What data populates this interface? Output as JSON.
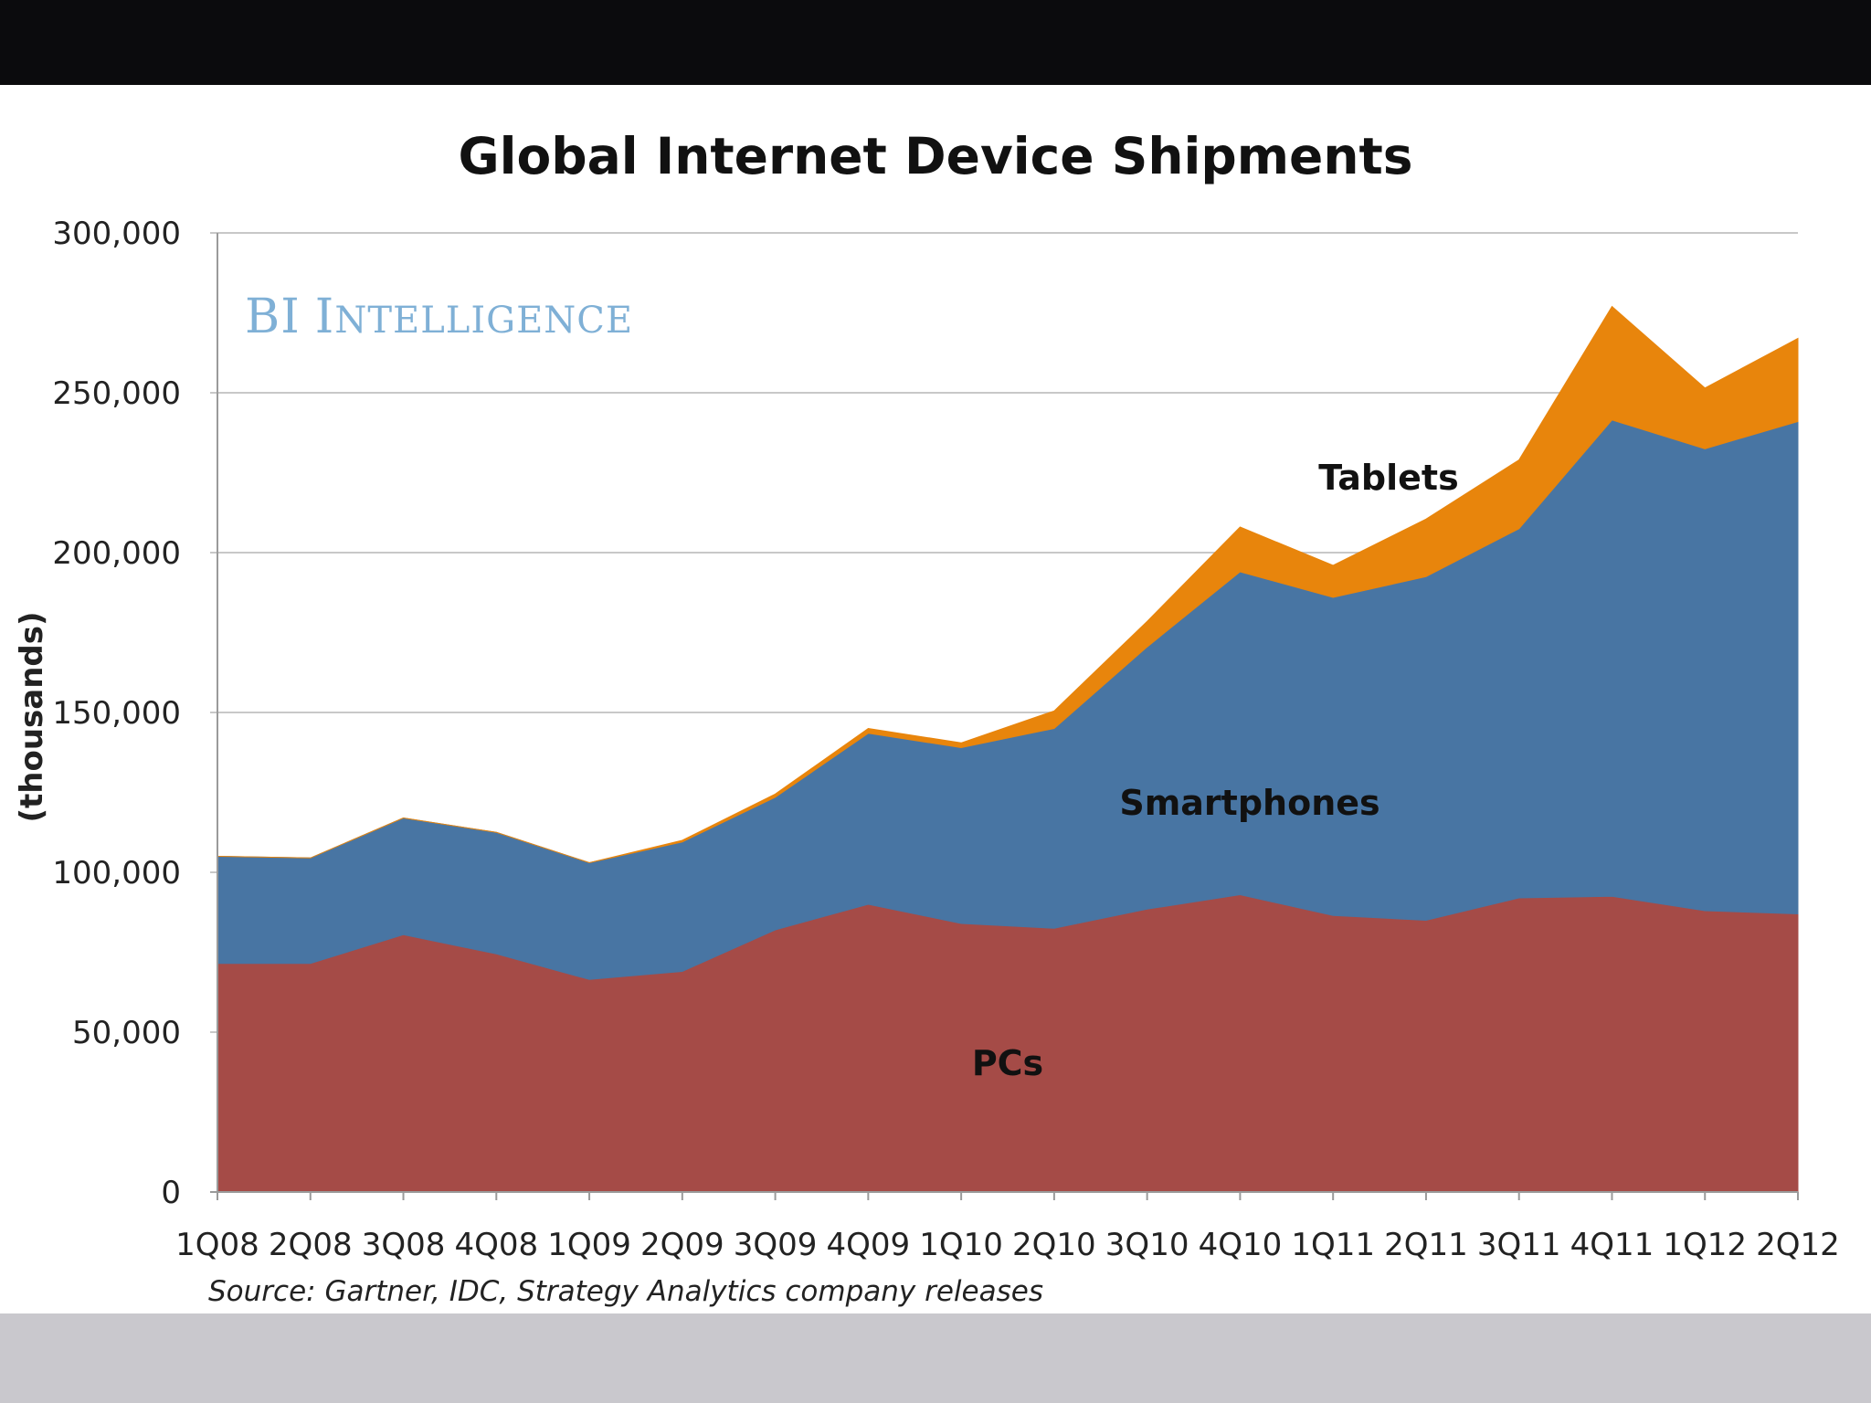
{
  "watermark": {
    "initials": "BI",
    "rest_first": "I",
    "rest_small": "NTELLIGENCE"
  },
  "source": "Source: Gartner, IDC, Strategy Analytics company releases",
  "colors": {
    "pcs": "#a54b47",
    "smartphones": "#4875a3",
    "tablets": "#e8850c",
    "grid": "#c8c8c8",
    "watermark": "#7fb0d6"
  },
  "chart_data": {
    "type": "area",
    "stacked": true,
    "title": "Global Internet Device Shipments",
    "xlabel": "",
    "ylabel": "(thousands)",
    "ylim": [
      0,
      300000
    ],
    "yticks": [
      0,
      50000,
      100000,
      150000,
      200000,
      250000,
      300000
    ],
    "ytick_labels": [
      "0",
      "50,000",
      "100,000",
      "150,000",
      "200,000",
      "250,000",
      "300,000"
    ],
    "grid": true,
    "categories": [
      "1Q08",
      "2Q08",
      "3Q08",
      "4Q08",
      "1Q09",
      "2Q09",
      "3Q09",
      "4Q09",
      "1Q10",
      "2Q10",
      "3Q10",
      "4Q10",
      "1Q11",
      "2Q11",
      "3Q11",
      "4Q11",
      "1Q12",
      "2Q12"
    ],
    "series": [
      {
        "name": "PCs",
        "key": "pcs",
        "values": [
          71500,
          71500,
          80500,
          74500,
          66500,
          69000,
          82000,
          90000,
          84000,
          82500,
          88500,
          93000,
          86500,
          85000,
          92000,
          92500,
          88000,
          87000
        ]
      },
      {
        "name": "Smartphones",
        "key": "smartphones",
        "values": [
          33500,
          33000,
          36500,
          38000,
          36500,
          40500,
          41500,
          53500,
          55000,
          62500,
          82000,
          101000,
          99500,
          107500,
          115500,
          149000,
          144500,
          154000
        ]
      },
      {
        "name": "Tablets",
        "key": "tablets",
        "values": [
          0,
          0,
          0,
          0,
          0,
          500,
          1000,
          1500,
          1500,
          5500,
          8000,
          14000,
          10000,
          18000,
          21500,
          35500,
          19000,
          26000
        ]
      }
    ],
    "annotations": [
      {
        "text": "Tablets",
        "series": "tablets"
      },
      {
        "text": "Smartphones",
        "series": "smartphones"
      },
      {
        "text": "PCs",
        "series": "pcs"
      }
    ]
  }
}
